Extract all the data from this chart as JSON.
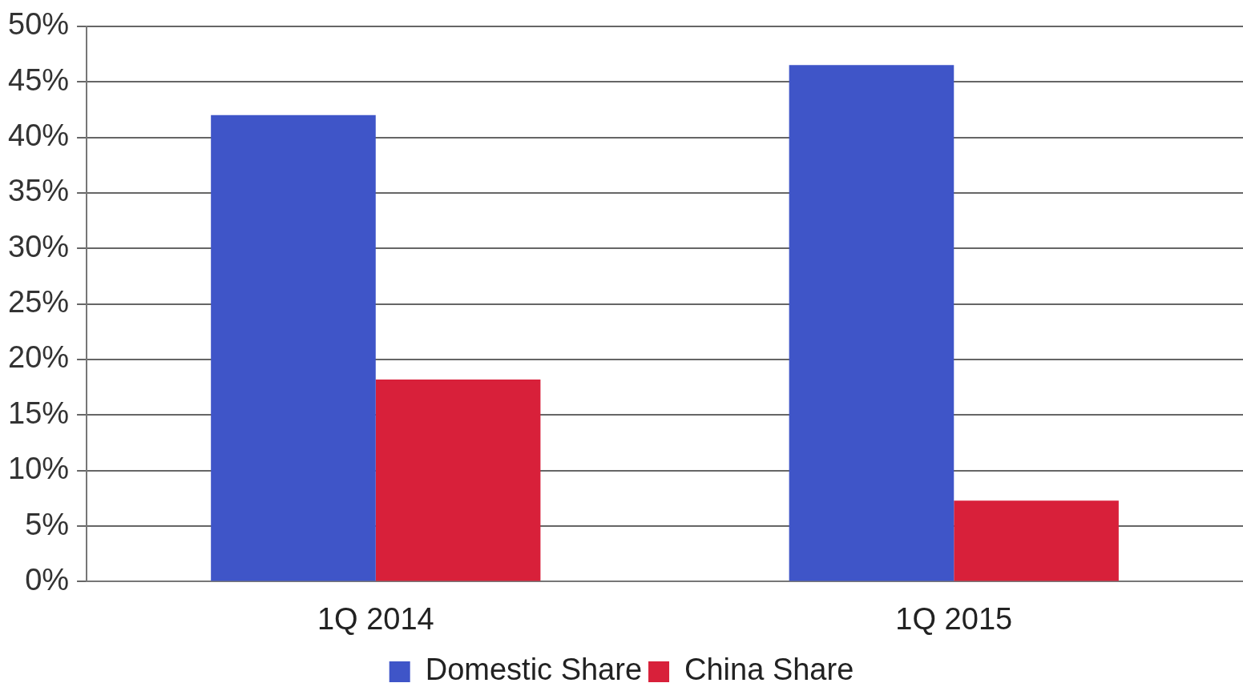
{
  "chart_data": {
    "type": "bar",
    "categories": [
      "1Q 2014",
      "1Q 2015"
    ],
    "series": [
      {
        "name": "Domestic Share",
        "color": "#3f55c8",
        "values": [
          42,
          46.5
        ]
      },
      {
        "name": "China Share",
        "color": "#d8203a",
        "values": [
          18.2,
          7.3
        ]
      }
    ],
    "ylim": [
      0,
      50
    ],
    "yticks": [
      {
        "value": 0,
        "label": "0%"
      },
      {
        "value": 5,
        "label": "5%"
      },
      {
        "value": 10,
        "label": "10%"
      },
      {
        "value": 15,
        "label": "15%"
      },
      {
        "value": 20,
        "label": "20%"
      },
      {
        "value": 25,
        "label": "25%"
      },
      {
        "value": 30,
        "label": "30%"
      },
      {
        "value": 35,
        "label": "35%"
      },
      {
        "value": 40,
        "label": "40%"
      },
      {
        "value": 45,
        "label": "45%"
      },
      {
        "value": 50,
        "label": "50%"
      }
    ],
    "grid": "y",
    "legend": "bottom"
  }
}
